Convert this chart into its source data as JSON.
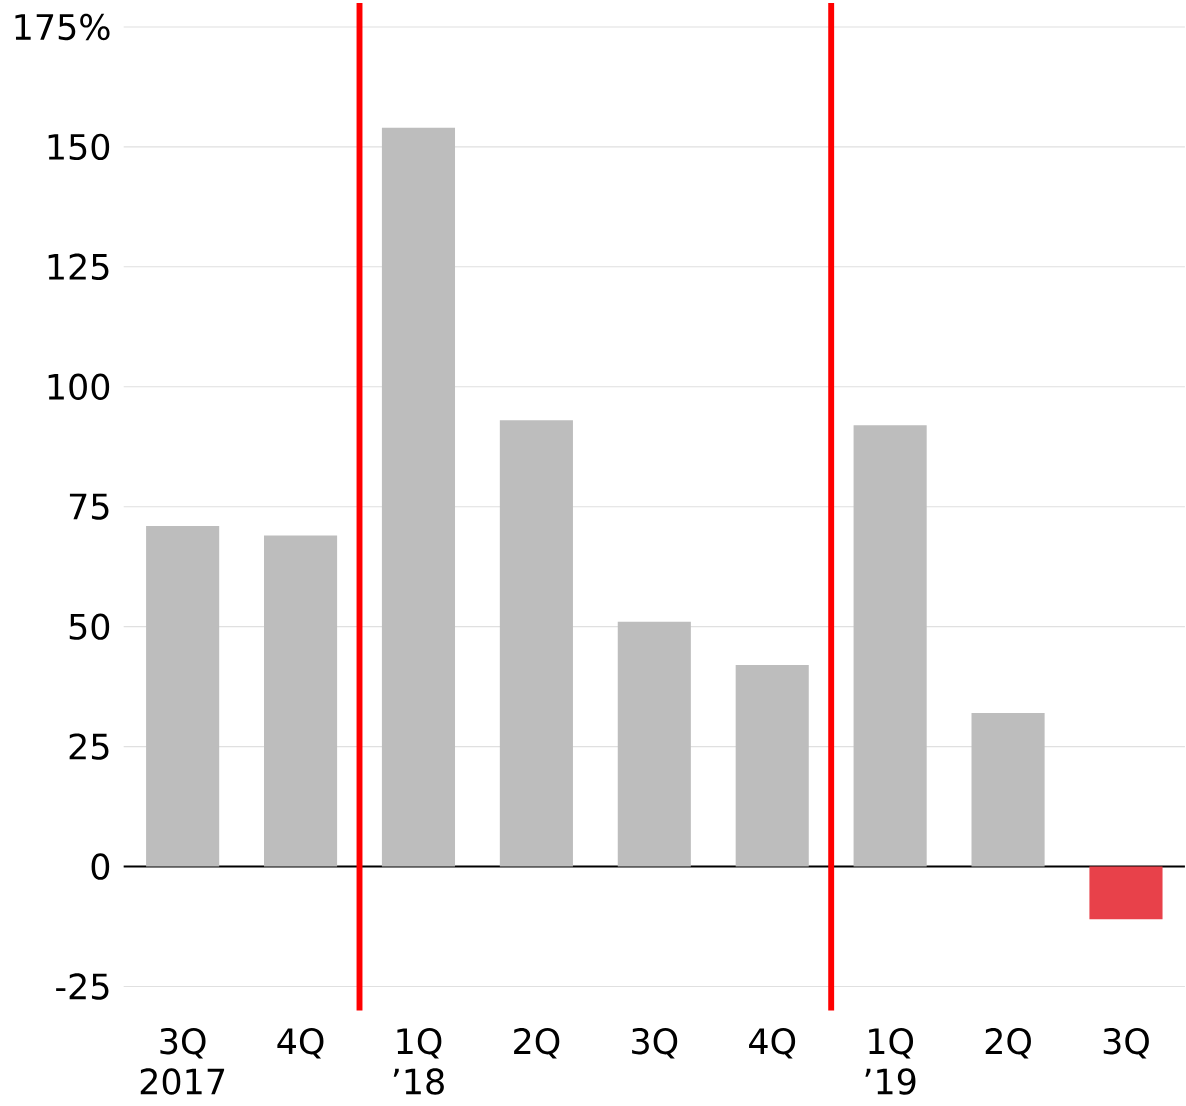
{
  "chart_data": {
    "type": "bar",
    "categories": [
      "3Q 2017",
      "4Q",
      "1Q ’18",
      "2Q",
      "3Q",
      "4Q",
      "1Q ’19",
      "2Q",
      "3Q"
    ],
    "values": [
      71,
      69,
      154,
      93,
      51,
      42,
      92,
      32,
      -11
    ],
    "colors": [
      "#bdbdbd",
      "#bdbdbd",
      "#bdbdbd",
      "#bdbdbd",
      "#bdbdbd",
      "#bdbdbd",
      "#bdbdbd",
      "#bdbdbd",
      "#e8414a"
    ],
    "ylim": [
      -30,
      180
    ],
    "yticks": [
      -25,
      0,
      25,
      50,
      75,
      100,
      125,
      150,
      {
        "value": 175,
        "label": "175%"
      }
    ],
    "grid": "y"
  }
}
